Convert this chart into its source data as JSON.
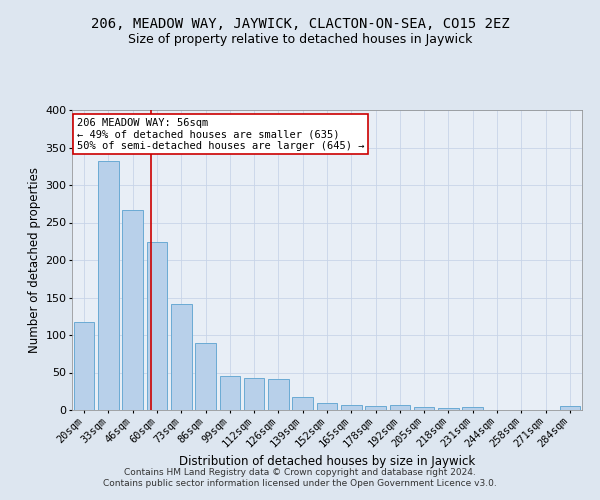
{
  "title": "206, MEADOW WAY, JAYWICK, CLACTON-ON-SEA, CO15 2EZ",
  "subtitle": "Size of property relative to detached houses in Jaywick",
  "xlabel": "Distribution of detached houses by size in Jaywick",
  "ylabel": "Number of detached properties",
  "categories": [
    "20sqm",
    "33sqm",
    "46sqm",
    "60sqm",
    "73sqm",
    "86sqm",
    "99sqm",
    "112sqm",
    "126sqm",
    "139sqm",
    "152sqm",
    "165sqm",
    "178sqm",
    "192sqm",
    "205sqm",
    "218sqm",
    "231sqm",
    "244sqm",
    "258sqm",
    "271sqm",
    "284sqm"
  ],
  "values": [
    117,
    332,
    267,
    224,
    142,
    90,
    46,
    43,
    42,
    18,
    10,
    7,
    6,
    7,
    4,
    3,
    4,
    0,
    0,
    0,
    5
  ],
  "bar_color": "#b8d0ea",
  "bar_edgecolor": "#6aaad4",
  "bar_linewidth": 0.7,
  "vline_color": "#cc0000",
  "vline_pos": 2.77,
  "annotation_box_text": "206 MEADOW WAY: 56sqm\n← 49% of detached houses are smaller (635)\n50% of semi-detached houses are larger (645) →",
  "annotation_box_edgecolor": "#cc0000",
  "annotation_box_facecolor": "#ffffff",
  "grid_color": "#c8d4e8",
  "background_color": "#dde6f0",
  "plot_bg_color": "#e8eef6",
  "footer_text": "Contains HM Land Registry data © Crown copyright and database right 2024.\nContains public sector information licensed under the Open Government Licence v3.0.",
  "ylim": [
    0,
    400
  ],
  "title_fontsize": 10,
  "subtitle_fontsize": 9,
  "xlabel_fontsize": 8.5,
  "ylabel_fontsize": 8.5,
  "tick_fontsize": 7.5,
  "footer_fontsize": 6.5,
  "annotation_fontsize": 7.5
}
